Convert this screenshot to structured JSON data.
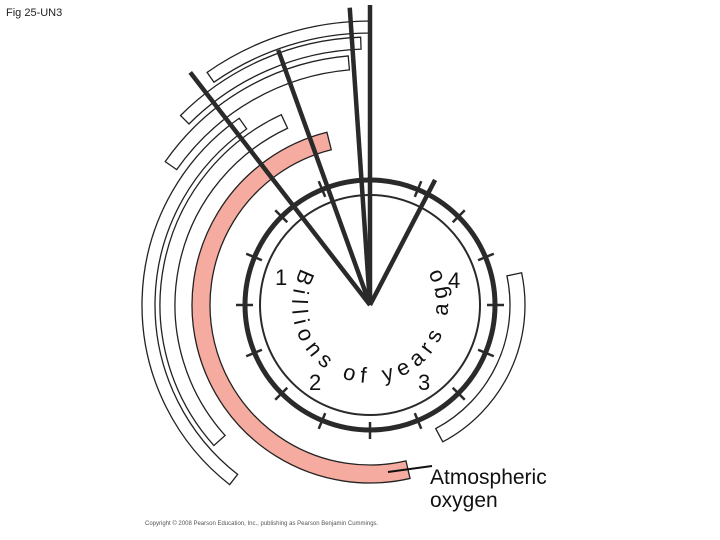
{
  "figure_label": "Fig 25-UN3",
  "clock": {
    "labels": [
      "1",
      "2",
      "3",
      "4"
    ],
    "unit_text": "Billions of years ago"
  },
  "annotation": {
    "lines": [
      "Atmospheric",
      "oxygen"
    ]
  },
  "copyright": "Copyright © 2008 Pearson Education, Inc., publishing as Pearson Benjamin Cummings."
}
